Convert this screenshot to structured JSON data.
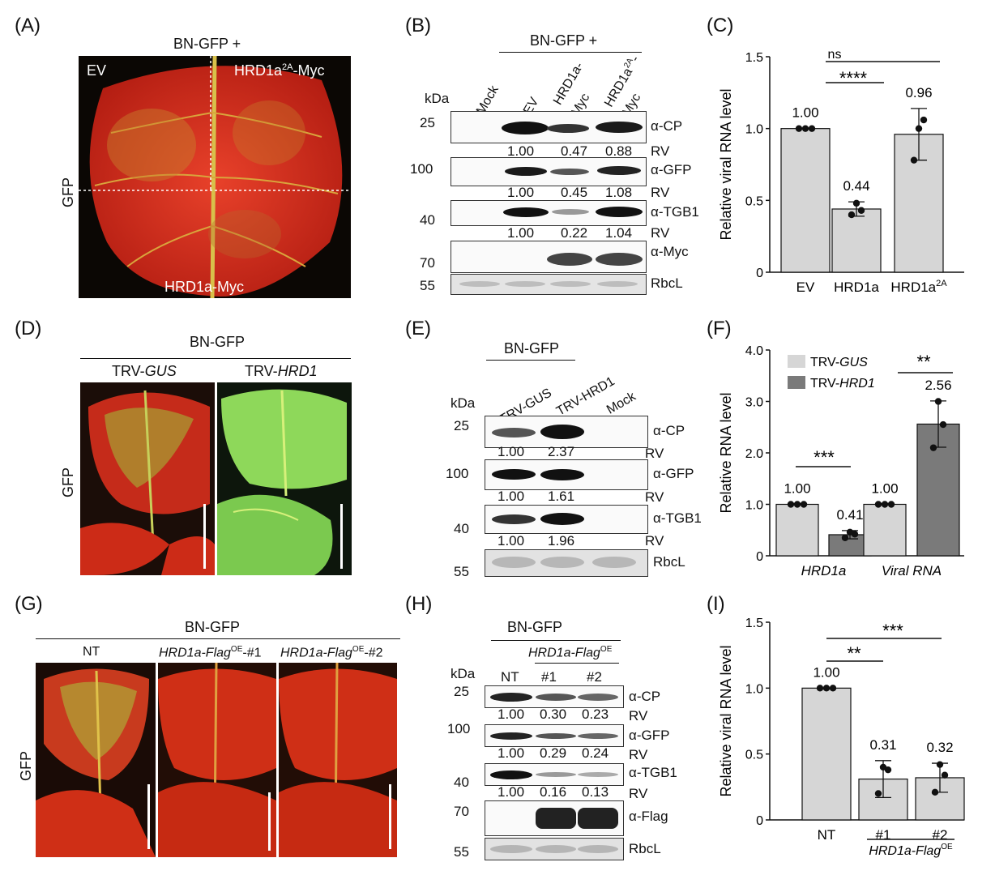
{
  "panels": {
    "A": {
      "label": "(A)",
      "header": "BN-GFP +",
      "side_label": "GFP",
      "quadrant_ev": "EV",
      "quadrant_hrd2a": "HRD1a",
      "quadrant_hrd2a_sup": "2A",
      "quadrant_hrd2a_suffix": "-Myc",
      "quadrant_hrd": "HRD1a-Myc"
    },
    "B": {
      "label": "(B)",
      "header": "BN-GFP +",
      "kda": "kDa",
      "lanes": [
        "Mock",
        "EV",
        "HRD1a-",
        "Myc",
        "HRD1a",
        "2A",
        "-",
        "Myc"
      ],
      "markers": [
        "25",
        "100",
        "40",
        "70",
        "55"
      ],
      "antibodies": [
        "α-CP",
        "α-GFP",
        "α-TGB1",
        "α-Myc",
        "RbcL"
      ],
      "rv": "RV",
      "cp_values": [
        "1.00",
        "0.47",
        "0.88"
      ],
      "gfp_values": [
        "1.00",
        "0.45",
        "1.08"
      ],
      "tgb1_values": [
        "1.00",
        "0.22",
        "1.04"
      ]
    },
    "C": {
      "label": "(C)",
      "sig_ns": "ns",
      "sig_stars": "****"
    },
    "D": {
      "label": "(D)",
      "header": "BN-GFP",
      "side_label": "GFP",
      "col1_prefix": "TRV-",
      "col1_italic": "GUS",
      "col2_prefix": "TRV-",
      "col2_italic": "HRD1"
    },
    "E": {
      "label": "(E)",
      "header": "BN-GFP",
      "kda": "kDa",
      "lanes": [
        "TRV-GUS",
        "TRV-HRD1",
        "Mock"
      ],
      "markers": [
        "25",
        "100",
        "40",
        "55"
      ],
      "antibodies": [
        "α-CP",
        "α-GFP",
        "α-TGB1",
        "RbcL"
      ],
      "rv": "RV",
      "cp_values": [
        "1.00",
        "2.37"
      ],
      "gfp_values": [
        "1.00",
        "1.61"
      ],
      "tgb1_values": [
        "1.00",
        "1.96"
      ]
    },
    "F": {
      "label": "(F)",
      "sig1": "***",
      "sig2": "**"
    },
    "G": {
      "label": "(G)",
      "header": "BN-GFP",
      "side_label": "GFP",
      "col1": "NT",
      "col2_italic": "HRD1a-Flag",
      "col2_sup": "OE",
      "col2_suffix": "-#1",
      "col3_italic": "HRD1a-Flag",
      "col3_sup": "OE",
      "col3_suffix": "-#2"
    },
    "H": {
      "label": "(H)",
      "header": "BN-GFP",
      "subheader_italic": "HRD1a-Flag",
      "subheader_sup": "OE",
      "kda": "kDa",
      "lanes": [
        "NT",
        "#1",
        "#2"
      ],
      "markers": [
        "25",
        "100",
        "40",
        "70",
        "55"
      ],
      "antibodies": [
        "α-CP",
        "α-GFP",
        "α-TGB1",
        "α-Flag",
        "RbcL"
      ],
      "rv": "RV",
      "cp_values": [
        "1.00",
        "0.30",
        "0.23"
      ],
      "gfp_values": [
        "1.00",
        "0.29",
        "0.24"
      ],
      "tgb1_values": [
        "1.00",
        "0.16",
        "0.13"
      ]
    },
    "I": {
      "label": "(I)",
      "sig1": "**",
      "sig2": "***",
      "group_italic": "HRD1a-Flag",
      "group_sup": "OE"
    }
  },
  "chart_data": [
    {
      "id": "C",
      "type": "bar",
      "ylabel": "Relative viral RNA level",
      "ylim": [
        0,
        1.5
      ],
      "yticks": [
        "0",
        "0.5",
        "1.0",
        "1.5"
      ],
      "categories": [
        "EV",
        "HRD1a",
        "HRD1a2A"
      ],
      "category_sup": [
        "",
        "",
        "2A"
      ],
      "values": [
        1.0,
        0.44,
        0.96
      ],
      "value_labels": [
        "1.00",
        "0.44",
        "0.96"
      ],
      "errors": [
        0.0,
        0.05,
        0.18
      ],
      "points": [
        [
          1.0,
          1.0,
          1.0
        ],
        [
          0.4,
          0.43,
          0.48
        ],
        [
          0.78,
          1.06,
          1.0
        ]
      ]
    },
    {
      "id": "F",
      "type": "bar",
      "ylabel": "Relative RNA level",
      "ylim": [
        0,
        4.0
      ],
      "yticks": [
        "0",
        "1.0",
        "2.0",
        "3.0",
        "4.0"
      ],
      "categories": [
        "HRD1a",
        "Viral RNA"
      ],
      "legend": "top-left",
      "series": [
        {
          "name": "TRV-GUS",
          "color": "#d6d6d6",
          "values": [
            1.0,
            1.0
          ],
          "value_labels": [
            "1.00",
            "1.00"
          ],
          "errors": [
            0,
            0
          ],
          "points": [
            [
              1.0,
              1.0,
              1.0
            ],
            [
              1.0,
              1.0,
              1.0
            ]
          ]
        },
        {
          "name": "TRV-HRD1",
          "color": "#7a7a7a",
          "values": [
            0.41,
            2.56
          ],
          "value_labels": [
            "0.41",
            "2.56"
          ],
          "errors": [
            0.08,
            0.45
          ],
          "points": [
            [
              0.35,
              0.42,
              0.46
            ],
            [
              2.1,
              2.55,
              3.0
            ]
          ]
        }
      ]
    },
    {
      "id": "I",
      "type": "bar",
      "ylabel": "Relative viral RNA level",
      "ylim": [
        0,
        1.5
      ],
      "yticks": [
        "0",
        "0.5",
        "1.0",
        "1.5"
      ],
      "categories": [
        "NT",
        "#1",
        "#2"
      ],
      "values": [
        1.0,
        0.31,
        0.32
      ],
      "value_labels": [
        "1.00",
        "0.31",
        "0.32"
      ],
      "errors": [
        0.0,
        0.14,
        0.11
      ],
      "points": [
        [
          1.0,
          1.0,
          1.0
        ],
        [
          0.2,
          0.38,
          0.4
        ],
        [
          0.21,
          0.34,
          0.42
        ]
      ]
    }
  ]
}
